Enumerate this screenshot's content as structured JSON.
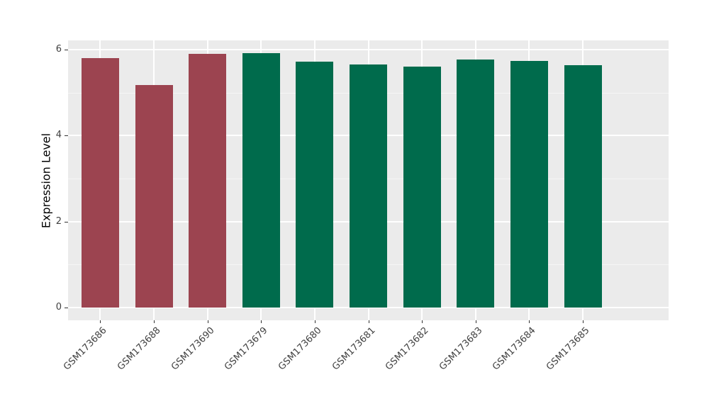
{
  "chart_data": {
    "type": "bar",
    "title": "",
    "ylabel": "Expression Level",
    "xlabel": "",
    "categories": [
      "GSM173686",
      "GSM173688",
      "GSM173690",
      "GSM173679",
      "GSM173680",
      "GSM173681",
      "GSM173682",
      "GSM173683",
      "GSM173684",
      "GSM173685"
    ],
    "values": [
      5.81,
      5.18,
      5.91,
      5.92,
      5.72,
      5.66,
      5.61,
      5.77,
      5.74,
      5.65
    ],
    "bar_colors": [
      "#9C4450",
      "#9C4450",
      "#9C4450",
      "#006B4C",
      "#006B4C",
      "#006B4C",
      "#006B4C",
      "#006B4C",
      "#006B4C",
      "#006B4C"
    ],
    "group_colors": {
      "left-group": "#9C4450",
      "right-group": "#006B4C"
    },
    "y_ticks": [
      0,
      2,
      4,
      6
    ],
    "y_tick_labels": [
      "0",
      "2",
      "4",
      "6"
    ],
    "y_minor_ticks": [
      1,
      3,
      5
    ],
    "ylim": [
      0,
      6
    ],
    "y_scale": {
      "min": -0.3,
      "max": 6.22
    },
    "bar_width_ratio": 0.7,
    "legend": false,
    "grid": true,
    "style": {
      "figure_bg": "#FFFFFF",
      "panel_bg": "#EBEBEB",
      "grid_major": "#FFFFFF",
      "grid_minor": "#F5F5F5",
      "axis_text": "#404040",
      "axis_title": "#000000",
      "tick_mark": "#333333"
    }
  }
}
